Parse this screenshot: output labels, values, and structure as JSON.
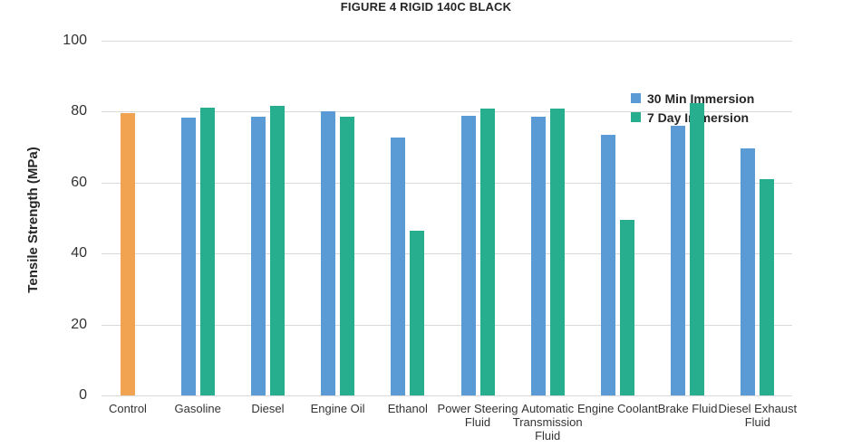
{
  "figure": {
    "title": "FIGURE 4 RIGID 140C BLACK"
  },
  "colors": {
    "control_orange": "#F2A351",
    "series_blue": "#5B9BD5",
    "series_green": "#27AE8E",
    "gridline": "#D9D9D9",
    "axis_text": "#333333",
    "title_text": "#262626",
    "background": "#FFFFFF"
  },
  "chart_data": {
    "type": "bar",
    "title": "FIGURE 4 RIGID 140C BLACK",
    "xlabel": "",
    "ylabel": "Tensile Strength (MPa)",
    "ylim": [
      0,
      100
    ],
    "yticks": [
      0,
      20,
      40,
      60,
      80,
      100
    ],
    "grid": true,
    "legend_position": "top-right",
    "categories": [
      "Control",
      "Gasoline",
      "Diesel",
      "Engine Oil",
      "Ethanol",
      "Power Steering Fluid",
      "Automatic Transmission Fluid",
      "Engine Coolant",
      "Brake Fluid",
      "Diesel Exhaust Fluid"
    ],
    "series": [
      {
        "name": "Control",
        "color": "#F2A351",
        "in_legend": false,
        "values": [
          79.7,
          null,
          null,
          null,
          null,
          null,
          null,
          null,
          null,
          null
        ]
      },
      {
        "name": "30 Min Immersion",
        "color": "#5B9BD5",
        "in_legend": true,
        "values": [
          null,
          78.4,
          78.7,
          80.0,
          72.7,
          78.8,
          78.6,
          73.5,
          76.0,
          69.6
        ]
      },
      {
        "name": "7 Day Immersion",
        "color": "#27AE8E",
        "in_legend": true,
        "values": [
          null,
          81.2,
          81.6,
          78.5,
          46.4,
          80.8,
          80.9,
          49.5,
          82.4,
          60.9
        ]
      }
    ],
    "legend": [
      {
        "label": "30 Min Immersion",
        "color": "#5B9BD5"
      },
      {
        "label": "7 Day Immersion",
        "color": "#27AE8E"
      }
    ]
  }
}
